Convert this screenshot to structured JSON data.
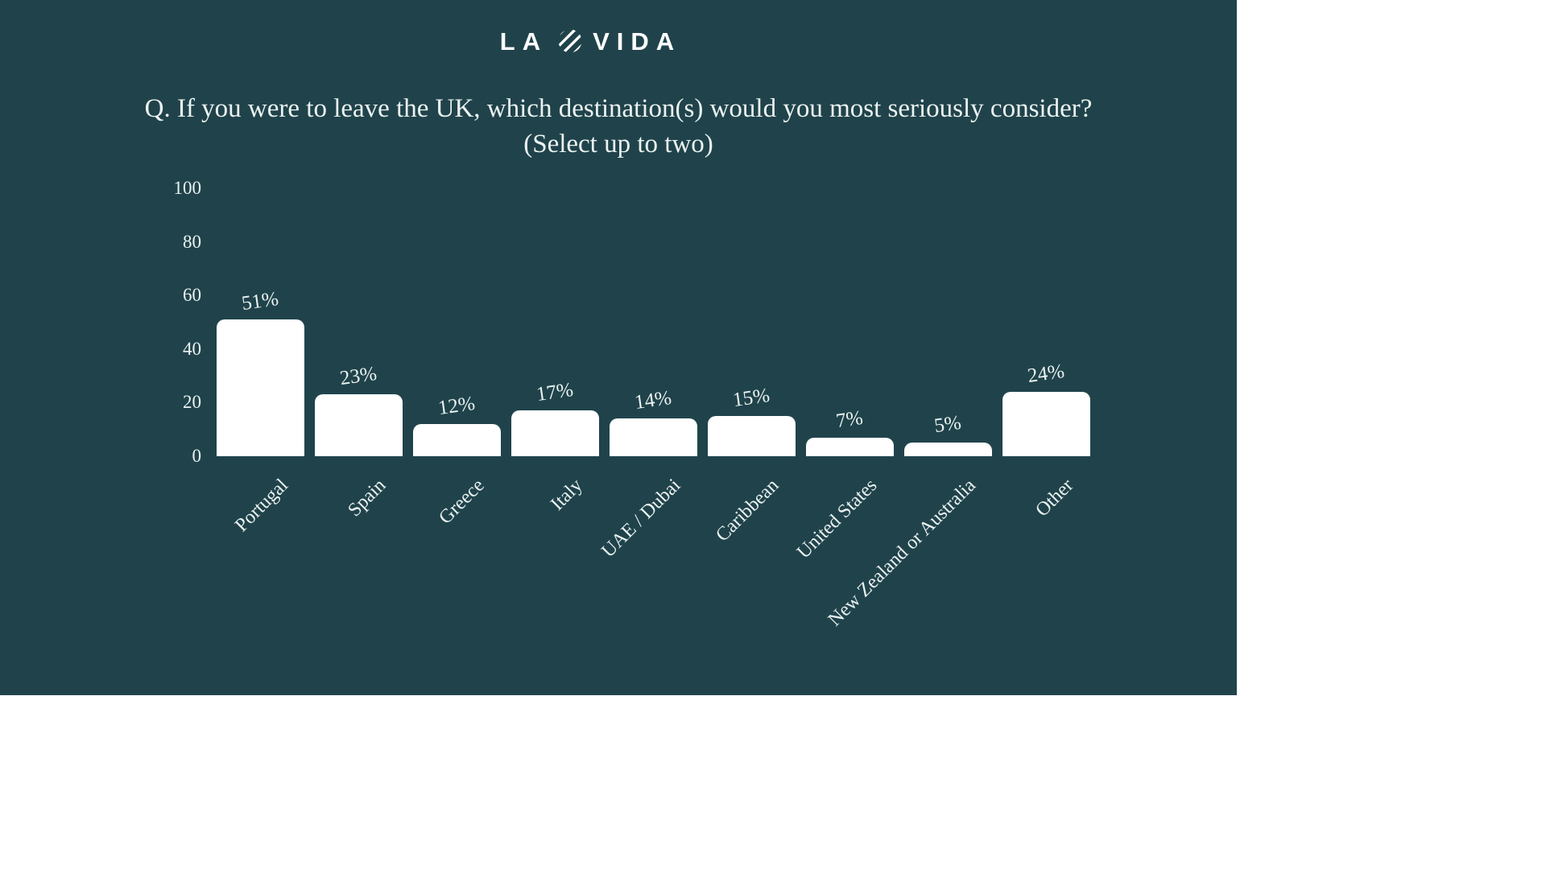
{
  "logo": {
    "text_left": "LA",
    "text_right": "VIDA",
    "icon": "striped-circle-icon"
  },
  "title": {
    "line1": "Q. If you were to leave the UK, which destination(s) would you most seriously consider?",
    "line2": "(Select up to two)"
  },
  "colors": {
    "background": "#20434B",
    "bar": "#FFFFFF",
    "text": "#ECF3F2",
    "canvas": "#FFFFFF"
  },
  "chart_data": {
    "type": "bar",
    "title": "Q. If you were to leave the UK, which destination(s) would you most seriously consider? (Select up to two)",
    "categories": [
      "Portugal",
      "Spain",
      "Greece",
      "Italy",
      "UAE / Dubai",
      "Caribbean",
      "United States",
      "New Zealand or Australia",
      "Other"
    ],
    "values": [
      51,
      23,
      12,
      17,
      14,
      15,
      7,
      5,
      24
    ],
    "value_labels": [
      "51%",
      "23%",
      "12%",
      "17%",
      "14%",
      "15%",
      "7%",
      "5%",
      "24%"
    ],
    "yticks": [
      100,
      80,
      60,
      40,
      20,
      0
    ],
    "ylim": [
      0,
      100
    ],
    "xlabel": "",
    "ylabel": "",
    "grid": false,
    "legend": false,
    "bar_color": "#FFFFFF",
    "category_label_rotation_deg": -45
  }
}
